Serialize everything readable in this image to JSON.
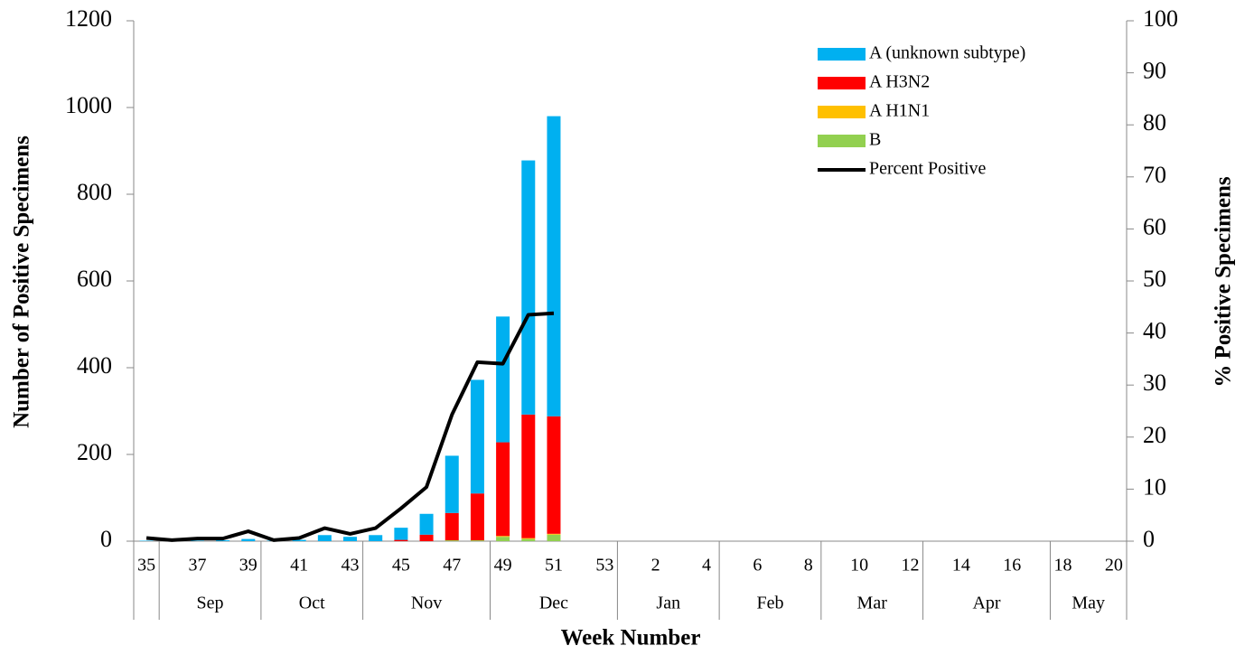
{
  "chart_data": {
    "type": "bar",
    "x_label": "Week Number",
    "y_label": "Number of Positive Specimens",
    "y2_label": "% Positive Specimens",
    "categories": [
      "35",
      null,
      "37",
      null,
      "39",
      null,
      "41",
      null,
      "43",
      null,
      "45",
      null,
      "47",
      null,
      "49",
      null,
      "51",
      null,
      "53",
      null,
      "2",
      null,
      "4",
      null,
      "6",
      null,
      "8",
      null,
      "10",
      null,
      "12",
      null,
      "14",
      null,
      "16",
      null,
      "18",
      null,
      "20"
    ],
    "month_groups": [
      {
        "label": null,
        "span": 1
      },
      {
        "label": "Sep",
        "span": 4
      },
      {
        "label": "Oct",
        "span": 4
      },
      {
        "label": "Nov",
        "span": 5
      },
      {
        "label": "Dec",
        "span": 5
      },
      {
        "label": "Jan",
        "span": 4
      },
      {
        "label": "Feb",
        "span": 4
      },
      {
        "label": "Mar",
        "span": 4
      },
      {
        "label": "Apr",
        "span": 5
      },
      {
        "label": "May",
        "span": 3
      }
    ],
    "stacked": true,
    "series": [
      {
        "name": "B",
        "color": "#92d050",
        "values": [
          0,
          0,
          0,
          0,
          0,
          0,
          0,
          0,
          0,
          0,
          0,
          0,
          2,
          2,
          10,
          5,
          15,
          null,
          null,
          null,
          null,
          null,
          null,
          null,
          null,
          null,
          null,
          null,
          null,
          null,
          null,
          null,
          null,
          null,
          null,
          null,
          null,
          null,
          null
        ]
      },
      {
        "name": "A H1N1",
        "color": "#ffc000",
        "values": [
          0,
          0,
          0,
          0,
          0,
          0,
          0,
          0,
          0,
          0,
          0,
          0,
          0,
          0,
          2,
          2,
          2,
          null,
          null,
          null,
          null,
          null,
          null,
          null,
          null,
          null,
          null,
          null,
          null,
          null,
          null,
          null,
          null,
          null,
          null,
          null,
          null,
          null,
          null
        ]
      },
      {
        "name": "A H3N2",
        "color": "#ff0000",
        "values": [
          0,
          0,
          0,
          0,
          0,
          0,
          0,
          0,
          0,
          0,
          3,
          15,
          63,
          108,
          216,
          285,
          271,
          null,
          null,
          null,
          null,
          null,
          null,
          null,
          null,
          null,
          null,
          null,
          null,
          null,
          null,
          null,
          null,
          null,
          null,
          null,
          null,
          null,
          null
        ]
      },
      {
        "name": "A (unknown subtype)",
        "color": "#00b0f0",
        "values": [
          1,
          0,
          1,
          2,
          5,
          1,
          3,
          14,
          10,
          14,
          28,
          48,
          132,
          262,
          290,
          586,
          692,
          null,
          null,
          null,
          null,
          null,
          null,
          null,
          null,
          null,
          null,
          null,
          null,
          null,
          null,
          null,
          null,
          null,
          null,
          null,
          null,
          null,
          null
        ]
      },
      {
        "name": "Percent Positive",
        "type": "line",
        "axis": "y2",
        "color": "#000000",
        "values": [
          0.6,
          0.2,
          0.5,
          0.5,
          1.9,
          0.2,
          0.6,
          2.5,
          1.4,
          2.5,
          6.3,
          10.4,
          24.3,
          34.4,
          34.1,
          43.5,
          43.8,
          null,
          null,
          null,
          null,
          null,
          null,
          null,
          null,
          null,
          null,
          null,
          null,
          null,
          null,
          null,
          null,
          null,
          null,
          null,
          null,
          null,
          null
        ]
      }
    ],
    "legend_order": [
      3,
      2,
      1,
      0,
      4
    ],
    "legend": "upper right",
    "ylim": [
      0,
      1200
    ],
    "yticks": [
      0,
      200,
      400,
      600,
      800,
      1000,
      1200
    ],
    "y2lim": [
      0,
      100
    ],
    "y2ticks": [
      0,
      10,
      20,
      30,
      40,
      50,
      60,
      70,
      80,
      90,
      100
    ]
  }
}
